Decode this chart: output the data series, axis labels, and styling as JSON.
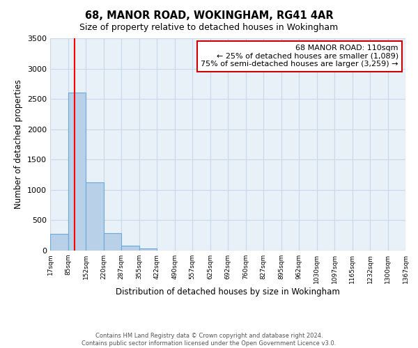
{
  "title": "68, MANOR ROAD, WOKINGHAM, RG41 4AR",
  "subtitle": "Size of property relative to detached houses in Wokingham",
  "bar_values": [
    270,
    2600,
    1120,
    290,
    80,
    35,
    0,
    0,
    0,
    0,
    0,
    0,
    0,
    0,
    0,
    0,
    0,
    0,
    0,
    0
  ],
  "bin_edges": [
    17,
    85,
    152,
    220,
    287,
    355,
    422,
    490,
    557,
    625,
    692,
    760,
    827,
    895,
    962,
    1030,
    1097,
    1165,
    1232,
    1300,
    1367
  ],
  "bin_labels": [
    "17sqm",
    "85sqm",
    "152sqm",
    "220sqm",
    "287sqm",
    "355sqm",
    "422sqm",
    "490sqm",
    "557sqm",
    "625sqm",
    "692sqm",
    "760sqm",
    "827sqm",
    "895sqm",
    "962sqm",
    "1030sqm",
    "1097sqm",
    "1165sqm",
    "1232sqm",
    "1300sqm",
    "1367sqm"
  ],
  "xlabel": "Distribution of detached houses by size in Wokingham",
  "ylabel": "Number of detached properties",
  "ylim": [
    0,
    3500
  ],
  "yticks": [
    0,
    500,
    1000,
    1500,
    2000,
    2500,
    3000,
    3500
  ],
  "bar_color": "#b8d0e8",
  "bar_edge_color": "#6aaad4",
  "red_line_x": 110,
  "annotation_title": "68 MANOR ROAD: 110sqm",
  "annotation_line1": "← 25% of detached houses are smaller (1,089)",
  "annotation_line2": "75% of semi-detached houses are larger (3,259) →",
  "annotation_box_color": "#ffffff",
  "annotation_box_edge": "#cc0000",
  "footer_line1": "Contains HM Land Registry data © Crown copyright and database right 2024.",
  "footer_line2": "Contains public sector information licensed under the Open Government Licence v3.0.",
  "background_color": "#ffffff",
  "ax_background": "#e8f0f8",
  "grid_color": "#c8d8e8"
}
